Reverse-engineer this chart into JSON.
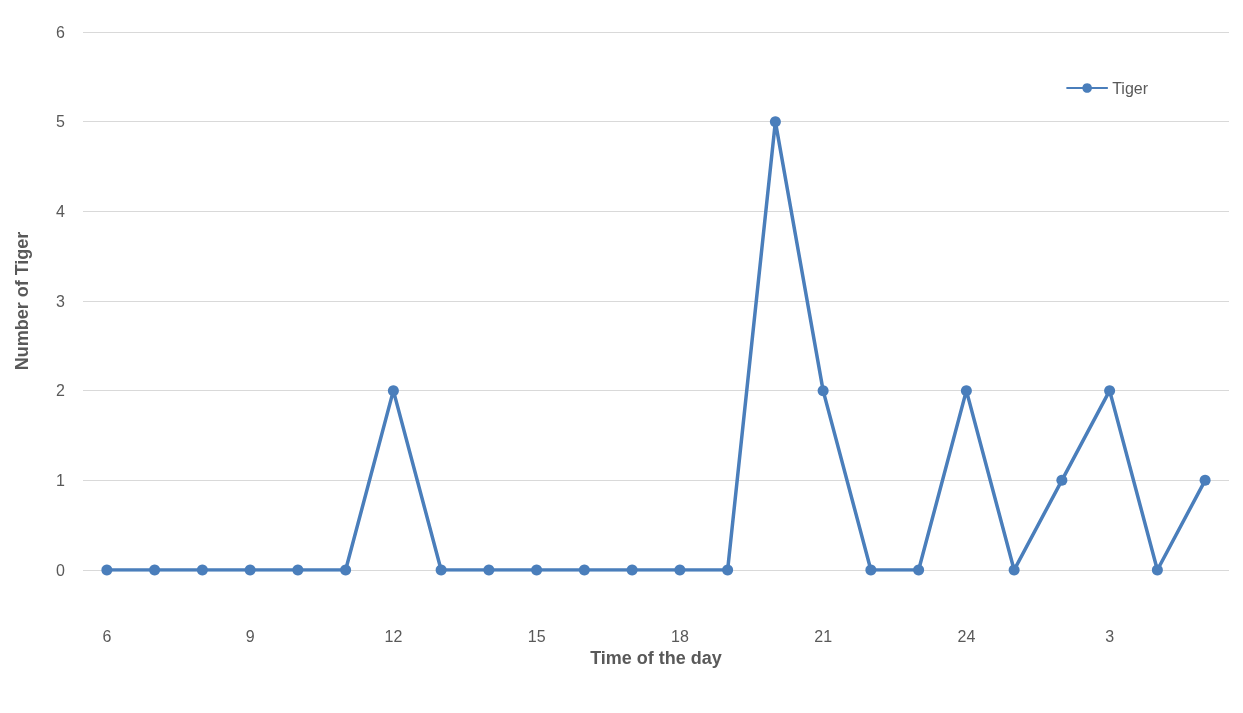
{
  "chart_data": {
    "type": "line",
    "xlabel": "Time of the day",
    "ylabel": "Number of Tiger",
    "categories": [
      "6",
      null,
      null,
      "9",
      null,
      null,
      "12",
      null,
      null,
      "15",
      null,
      null,
      "18",
      null,
      null,
      "21",
      null,
      null,
      "24",
      null,
      null,
      "3",
      null,
      null
    ],
    "series": [
      {
        "name": "Tiger",
        "color": "#4a7ebb",
        "values": [
          0,
          0,
          0,
          0,
          0,
          0,
          2,
          0,
          0,
          0,
          0,
          0,
          0,
          0,
          5,
          2,
          0,
          0,
          2,
          0,
          1,
          2,
          0,
          1
        ]
      }
    ],
    "ylim": [
      0,
      6
    ],
    "yticks": [
      0,
      1,
      2,
      3,
      4,
      5,
      6
    ],
    "grid": "y",
    "legend": "top right",
    "marker": "circle",
    "line_style": "solid"
  }
}
